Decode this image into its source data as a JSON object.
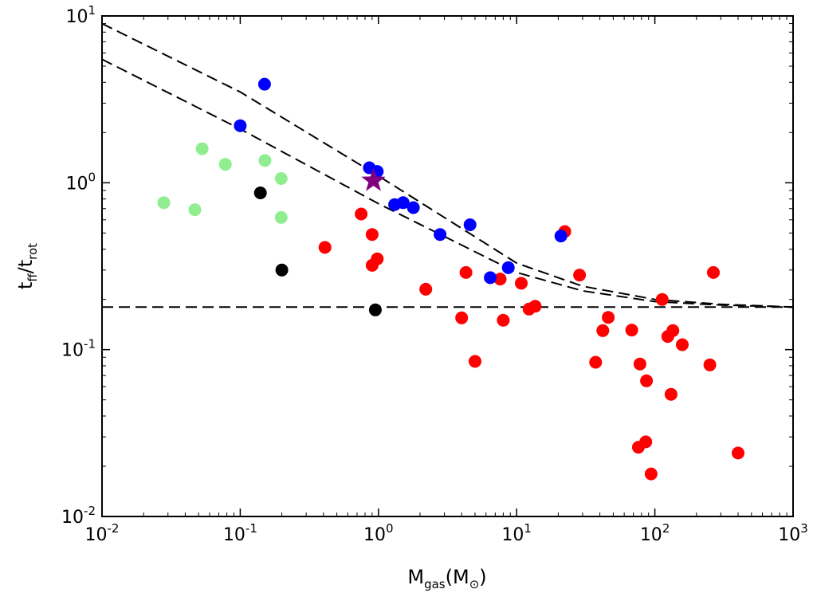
{
  "chart_data": {
    "type": "scatter",
    "xscale": "log",
    "yscale": "log",
    "xlim": [
      0.01,
      1000
    ],
    "ylim": [
      0.01,
      10
    ],
    "xlabel": {
      "base": "M",
      "sub": "gas",
      "unit_open": "(M",
      "unit_sub": "⊙",
      "unit_close": ")"
    },
    "ylabel": {
      "part1": "t",
      "sub1": "ff",
      "slash": "/t",
      "sub2": "rot"
    },
    "xticks": [
      {
        "value": 0.01,
        "base": "10",
        "exp": "-2"
      },
      {
        "value": 0.1,
        "base": "10",
        "exp": "-1"
      },
      {
        "value": 1,
        "base": "10",
        "exp": "0"
      },
      {
        "value": 10,
        "base": "10",
        "exp": "1"
      },
      {
        "value": 100,
        "base": "10",
        "exp": "2"
      },
      {
        "value": 1000,
        "base": "10",
        "exp": "3"
      }
    ],
    "yticks": [
      {
        "value": 0.01,
        "base": "10",
        "exp": "-2"
      },
      {
        "value": 0.1,
        "base": "10",
        "exp": "-1"
      },
      {
        "value": 1,
        "base": "10",
        "exp": "0"
      },
      {
        "value": 10,
        "base": "10",
        "exp": "1"
      }
    ],
    "series": [
      {
        "color": "#ff0000",
        "points": [
          [
            0.41,
            0.41
          ],
          [
            0.75,
            0.65
          ],
          [
            0.9,
            0.49
          ],
          [
            0.9,
            0.32
          ],
          [
            0.98,
            0.35
          ],
          [
            2.2,
            0.23
          ],
          [
            4.0,
            0.155
          ],
          [
            4.3,
            0.29
          ],
          [
            5.0,
            0.085
          ],
          [
            7.6,
            0.265
          ],
          [
            8.0,
            0.15
          ],
          [
            10.8,
            0.25
          ],
          [
            12.3,
            0.175
          ],
          [
            13.6,
            0.182
          ],
          [
            22.3,
            0.51
          ],
          [
            28.5,
            0.28
          ],
          [
            37.3,
            0.084
          ],
          [
            42.0,
            0.13
          ],
          [
            46.0,
            0.156
          ],
          [
            68.0,
            0.131
          ],
          [
            76.0,
            0.026
          ],
          [
            78.0,
            0.082
          ],
          [
            86.0,
            0.028
          ],
          [
            87.0,
            0.065
          ],
          [
            94.0,
            0.018
          ],
          [
            113.0,
            0.2
          ],
          [
            124.0,
            0.12
          ],
          [
            131.0,
            0.054
          ],
          [
            135.0,
            0.13
          ],
          [
            158.0,
            0.107
          ],
          [
            250.0,
            0.081
          ],
          [
            265.0,
            0.29
          ],
          [
            400.0,
            0.024
          ]
        ]
      },
      {
        "color": "#0000ff",
        "points": [
          [
            0.1,
            2.2
          ],
          [
            0.15,
            3.9
          ],
          [
            0.86,
            1.23
          ],
          [
            0.98,
            1.17
          ],
          [
            1.31,
            0.74
          ],
          [
            1.51,
            0.76
          ],
          [
            1.79,
            0.71
          ],
          [
            2.79,
            0.49
          ],
          [
            4.6,
            0.56
          ],
          [
            6.44,
            0.27
          ],
          [
            8.7,
            0.31
          ],
          [
            20.9,
            0.48
          ]
        ]
      },
      {
        "color": "#90ee90",
        "points": [
          [
            0.028,
            0.76
          ],
          [
            0.047,
            0.69
          ],
          [
            0.053,
            1.6
          ],
          [
            0.078,
            1.29
          ],
          [
            0.151,
            1.36
          ],
          [
            0.198,
            1.06
          ],
          [
            0.198,
            0.62
          ]
        ]
      },
      {
        "color": "#000000",
        "points": [
          [
            0.14,
            0.87
          ],
          [
            0.2,
            0.3
          ],
          [
            0.95,
            0.173
          ]
        ]
      }
    ],
    "star": {
      "x": 0.92,
      "y": 1.03,
      "color": "#800080"
    },
    "reference_lines": [
      {
        "style": "dashed",
        "points": [
          [
            0.01,
            0.18
          ],
          [
            1000,
            0.18
          ]
        ]
      },
      {
        "style": "dashed",
        "points": [
          [
            0.01,
            9.0
          ],
          [
            0.1,
            3.5
          ],
          [
            1,
            1.1
          ],
          [
            10,
            0.33
          ],
          [
            30,
            0.24
          ],
          [
            100,
            0.2
          ],
          [
            300,
            0.187
          ],
          [
            1000,
            0.18
          ]
        ]
      },
      {
        "style": "dashed",
        "points": [
          [
            0.01,
            5.5
          ],
          [
            0.1,
            2.1
          ],
          [
            1,
            0.75
          ],
          [
            10,
            0.29
          ],
          [
            30,
            0.225
          ],
          [
            100,
            0.194
          ],
          [
            300,
            0.185
          ],
          [
            1000,
            0.18
          ]
        ]
      }
    ]
  }
}
